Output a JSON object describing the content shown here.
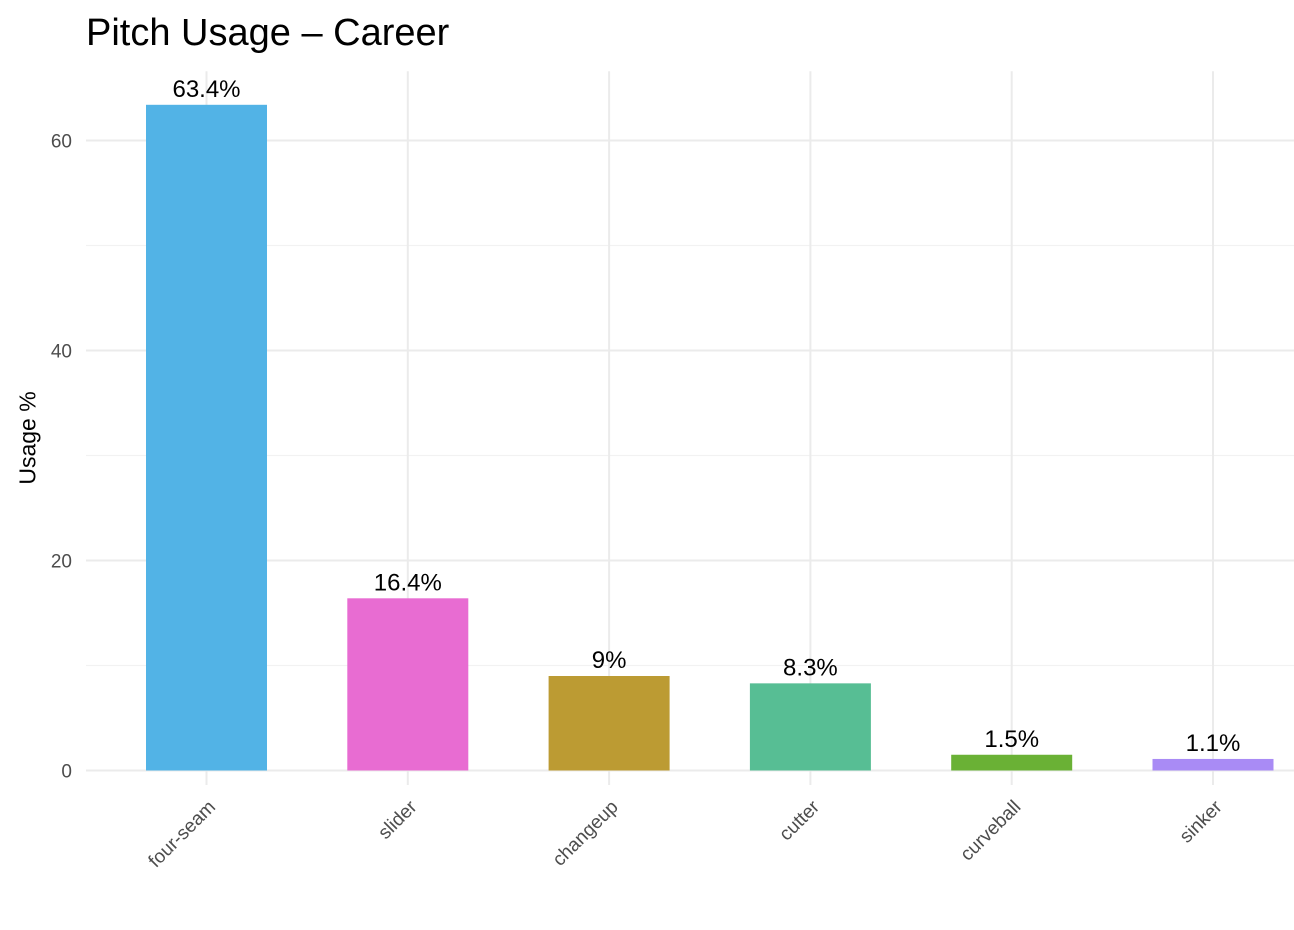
{
  "chart_data": {
    "type": "bar",
    "title": "Pitch Usage – Career",
    "xlabel": "",
    "ylabel": "Usage %",
    "categories": [
      "four-seam",
      "slider",
      "changeup",
      "cutter",
      "curveball",
      "sinker"
    ],
    "values": [
      63.4,
      16.4,
      9.0,
      8.3,
      1.5,
      1.1
    ],
    "data_labels": [
      "63.4%",
      "16.4%",
      "9%",
      "8.3%",
      "1.5%",
      "1.1%"
    ],
    "colors": [
      "#52B3E6",
      "#E86CD2",
      "#BC9B33",
      "#57BE94",
      "#6AB135",
      "#A98BF5"
    ],
    "y_ticks": [
      0,
      20,
      40,
      60
    ],
    "ylim": [
      0,
      66.6
    ],
    "grid": true,
    "legend": "none"
  }
}
